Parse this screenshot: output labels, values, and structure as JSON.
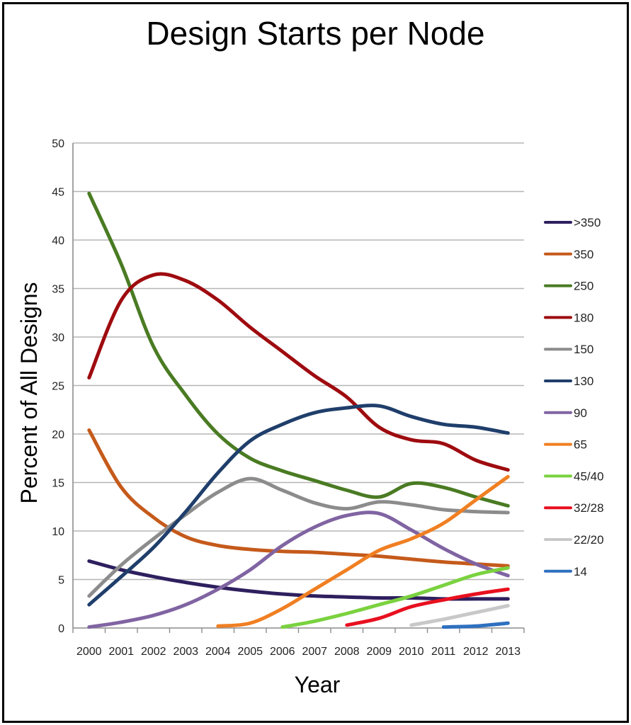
{
  "chart_data": {
    "type": "line",
    "title": "Design Starts per Node",
    "xlabel": "Year",
    "ylabel": "Percent of All Designs",
    "ylim": [
      0,
      50
    ],
    "yticks": [
      "0",
      "5",
      "10",
      "15",
      "20",
      "25",
      "30",
      "35",
      "40",
      "45",
      "50"
    ],
    "categories": [
      "2000",
      "2001",
      "2002",
      "2003",
      "2004",
      "2005",
      "2006",
      "2007",
      "2008",
      "2009",
      "2010",
      "2011",
      "2012",
      "2013"
    ],
    "grid": true,
    "legend_position": "right",
    "series": [
      {
        "name": ">350",
        "color": "#2e1f5e",
        "values": [
          6.9,
          6.0,
          5.3,
          4.7,
          4.2,
          3.8,
          3.5,
          3.3,
          3.2,
          3.1,
          3.1,
          3.0,
          3.0,
          3.0
        ]
      },
      {
        "name": "350",
        "color": "#c55a1b",
        "values": [
          20.4,
          14.5,
          11.4,
          9.4,
          8.5,
          8.1,
          7.9,
          7.8,
          7.6,
          7.4,
          7.1,
          6.8,
          6.6,
          6.4
        ]
      },
      {
        "name": "250",
        "color": "#4a7b23",
        "values": [
          44.8,
          37.5,
          29.0,
          24.0,
          20.0,
          17.5,
          16.2,
          15.2,
          14.2,
          13.5,
          14.9,
          14.5,
          13.5,
          12.6
        ]
      },
      {
        "name": "180",
        "color": "#9e0b0f",
        "values": [
          25.8,
          33.8,
          36.4,
          35.8,
          33.8,
          31.0,
          28.5,
          26.0,
          23.8,
          20.7,
          19.4,
          19.0,
          17.3,
          16.3
        ]
      },
      {
        "name": "150",
        "color": "#8c8c8c",
        "values": [
          3.3,
          6.5,
          9.2,
          11.7,
          14.0,
          15.4,
          14.2,
          12.9,
          12.3,
          13.0,
          12.7,
          12.2,
          12.0,
          11.9
        ]
      },
      {
        "name": "130",
        "color": "#1f3e6b",
        "values": [
          2.4,
          5.3,
          8.3,
          12.0,
          16.0,
          19.3,
          21.0,
          22.2,
          22.7,
          22.9,
          21.8,
          21.0,
          20.7,
          20.1
        ]
      },
      {
        "name": "90",
        "color": "#8064a2",
        "values": [
          0.1,
          0.6,
          1.3,
          2.4,
          4.0,
          6.0,
          8.5,
          10.4,
          11.6,
          11.8,
          10.1,
          8.2,
          6.6,
          5.4
        ]
      },
      {
        "name": "65",
        "color": "#f07f22",
        "values": [
          null,
          null,
          null,
          null,
          0.2,
          0.5,
          2.0,
          4.0,
          6.0,
          8.0,
          9.2,
          10.8,
          13.2,
          15.6
        ]
      },
      {
        "name": "45/40",
        "color": "#7ad23f",
        "values": [
          null,
          null,
          null,
          null,
          null,
          null,
          0.1,
          0.7,
          1.5,
          2.4,
          3.3,
          4.4,
          5.5,
          6.2
        ]
      },
      {
        "name": "32/28",
        "color": "#e8101f",
        "values": [
          null,
          null,
          null,
          null,
          null,
          null,
          null,
          null,
          0.3,
          1.0,
          2.2,
          2.9,
          3.5,
          4.0
        ]
      },
      {
        "name": "22/20",
        "color": "#c8c8c8",
        "values": [
          null,
          null,
          null,
          null,
          null,
          null,
          null,
          null,
          null,
          null,
          0.3,
          0.9,
          1.6,
          2.3
        ]
      },
      {
        "name": "14",
        "color": "#2e70c0",
        "values": [
          null,
          null,
          null,
          null,
          null,
          null,
          null,
          null,
          null,
          null,
          null,
          0.1,
          0.2,
          0.5
        ]
      }
    ]
  }
}
